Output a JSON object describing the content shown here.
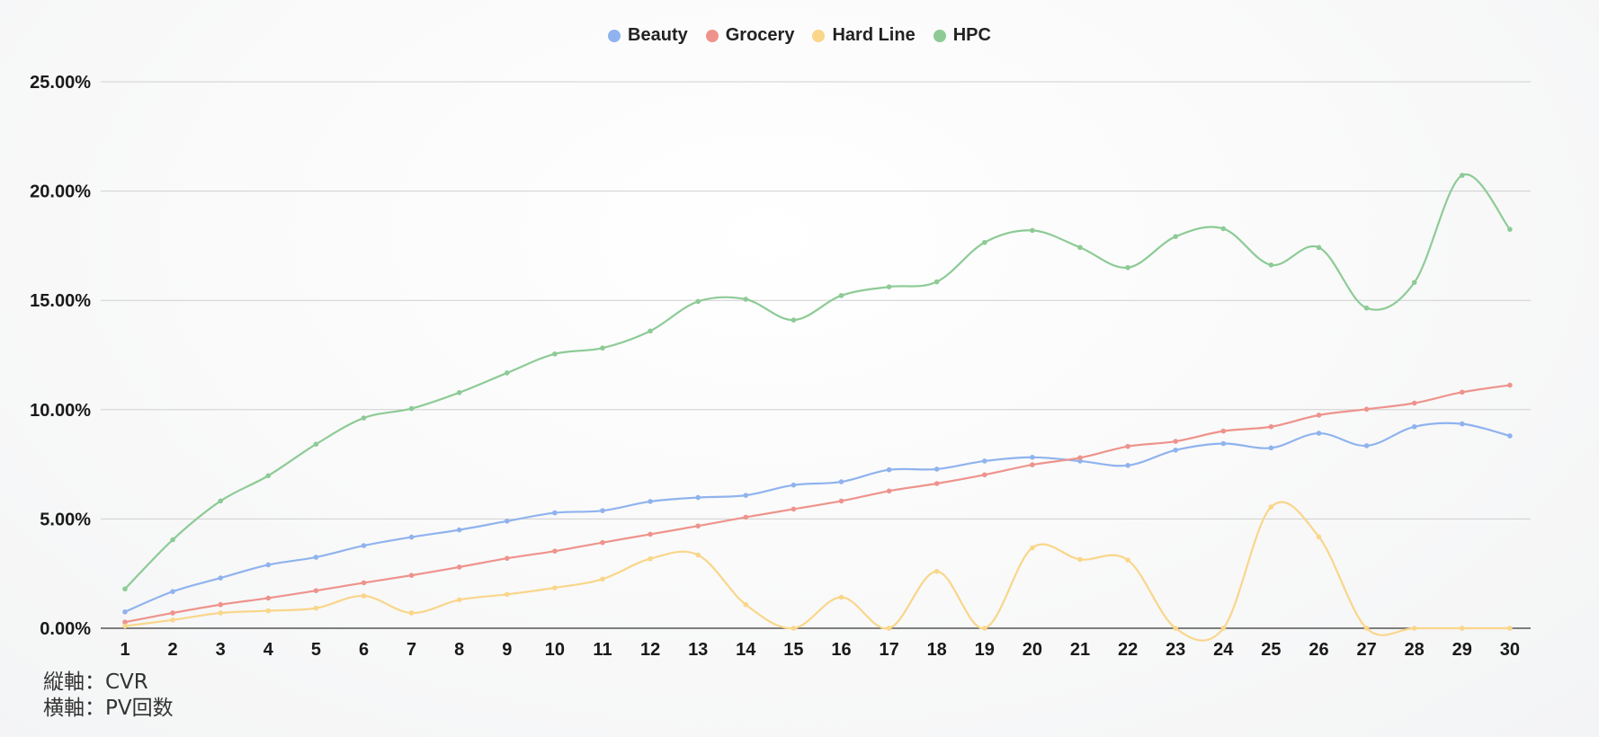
{
  "chart_data": {
    "type": "line",
    "legend_position": "top-center",
    "grid": true,
    "categories": [
      "1",
      "2",
      "3",
      "4",
      "5",
      "6",
      "7",
      "8",
      "9",
      "10",
      "11",
      "12",
      "13",
      "14",
      "15",
      "16",
      "17",
      "18",
      "19",
      "20",
      "21",
      "22",
      "23",
      "24",
      "25",
      "26",
      "27",
      "28",
      "29",
      "30"
    ],
    "y_ticks": [
      "0.00%",
      "5.00%",
      "10.00%",
      "15.00%",
      "20.00%",
      "25.00%"
    ],
    "ylim": [
      0,
      25
    ],
    "series": [
      {
        "name": "Beauty",
        "color": "#8fb3ee",
        "values": [
          0.75,
          1.68,
          2.3,
          2.9,
          3.25,
          3.78,
          4.17,
          4.5,
          4.9,
          5.28,
          5.38,
          5.8,
          5.98,
          6.08,
          6.55,
          6.7,
          7.25,
          7.28,
          7.65,
          7.82,
          7.65,
          7.45,
          8.15,
          8.45,
          8.25,
          8.92,
          8.35,
          9.22,
          9.35,
          8.8
        ]
      },
      {
        "name": "Grocery",
        "color": "#ee938c",
        "values": [
          0.28,
          0.7,
          1.08,
          1.38,
          1.72,
          2.08,
          2.42,
          2.8,
          3.2,
          3.53,
          3.92,
          4.3,
          4.68,
          5.08,
          5.45,
          5.82,
          6.28,
          6.62,
          7.02,
          7.48,
          7.8,
          8.32,
          8.55,
          9.02,
          9.22,
          9.75,
          10.02,
          10.3,
          10.8,
          11.12
        ]
      },
      {
        "name": "Hard Line",
        "color": "#f9d68a",
        "values": [
          0.1,
          0.38,
          0.7,
          0.8,
          0.92,
          1.48,
          0.7,
          1.3,
          1.55,
          1.85,
          2.25,
          3.18,
          3.35,
          1.08,
          0.0,
          1.42,
          0.0,
          2.6,
          0.0,
          3.68,
          3.15,
          3.12,
          0.0,
          0.0,
          5.55,
          4.18,
          0.0,
          0.0,
          0.0,
          0.0
        ]
      },
      {
        "name": "HPC",
        "color": "#8dcb96",
        "values": [
          1.8,
          4.05,
          5.82,
          6.98,
          8.42,
          9.62,
          10.05,
          10.78,
          11.68,
          12.55,
          12.82,
          13.6,
          14.95,
          15.05,
          14.1,
          15.22,
          15.62,
          15.85,
          17.65,
          18.2,
          17.42,
          16.5,
          17.92,
          18.28,
          16.62,
          17.42,
          14.65,
          15.82,
          20.72,
          18.25
        ]
      }
    ]
  },
  "notes": {
    "line1": "縦軸：CVR",
    "line2": "横軸：PV回数"
  }
}
